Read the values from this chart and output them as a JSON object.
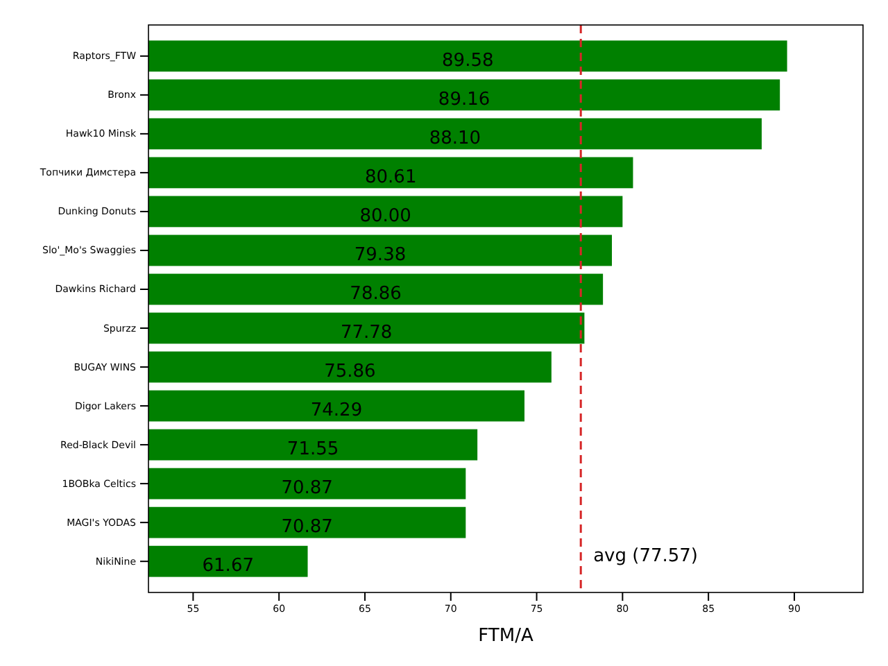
{
  "chart_data": {
    "type": "bar",
    "orientation": "horizontal",
    "xlabel": "FTM/A",
    "categories": [
      "Raptors_FTW",
      "Bronx",
      "Hawk10 Minsk",
      "Топчики Димстера",
      "Dunking Donuts",
      "Slo'_Mo's Swaggies",
      "Dawkins Richard",
      "Spurzz",
      "BUGAY WINS",
      "Digor Lakers",
      "Red-Black Devil",
      "1BOBka Celtics",
      "MAGI's YODAS",
      "NikiNine"
    ],
    "values": [
      89.58,
      89.16,
      88.1,
      80.61,
      80.0,
      79.38,
      78.86,
      77.78,
      75.86,
      74.29,
      71.55,
      70.87,
      70.87,
      61.67
    ],
    "value_labels": [
      "89.58",
      "89.16",
      "88.10",
      "80.61",
      "80.00",
      "79.38",
      "78.86",
      "77.78",
      "75.86",
      "74.29",
      "71.55",
      "70.87",
      "70.87",
      "61.67"
    ],
    "color": "#008000",
    "xlim": [
      52.4,
      94.0
    ],
    "xticks": [
      55,
      60,
      65,
      70,
      75,
      80,
      85,
      90
    ],
    "ref_lines": [
      {
        "axis": "x",
        "value": 77.57,
        "label": "avg (77.57)",
        "color": "#d62728",
        "line_style": "dashed"
      }
    ]
  }
}
